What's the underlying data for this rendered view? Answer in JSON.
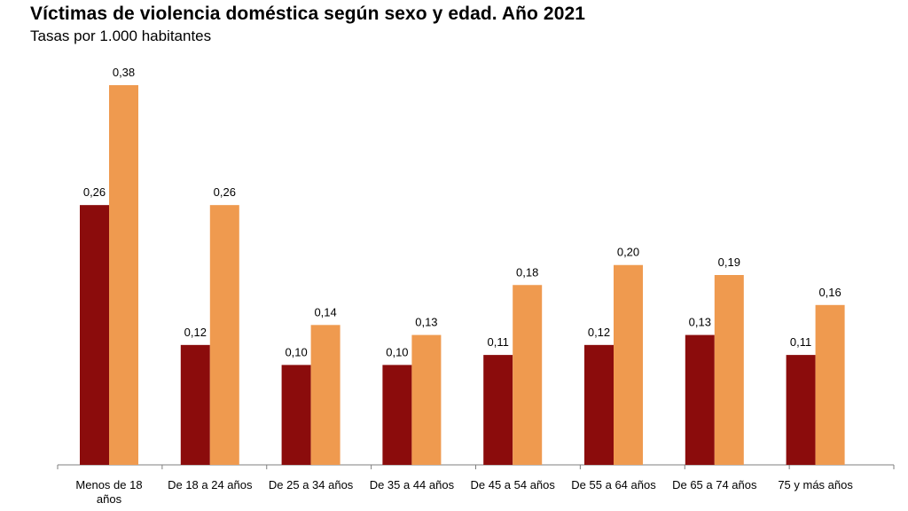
{
  "chart_data": {
    "type": "bar",
    "title": "Víctimas de violencia doméstica según sexo y edad. Año 2021",
    "subtitle": "Tasas por 1.000 habitantes",
    "xlabel": "",
    "ylabel": "",
    "ylim": [
      0,
      0.38
    ],
    "grid": false,
    "legend": "none",
    "categories": [
      [
        "Menos de 18",
        "años"
      ],
      [
        "De 18 a 24 años"
      ],
      [
        "De 25 a 34 años"
      ],
      [
        "De 35 a 44 años"
      ],
      [
        "De 45 a 54 años"
      ],
      [
        "De 55 a 64 años"
      ],
      [
        "De 65 a 74 años"
      ],
      [
        "75 y más años"
      ]
    ],
    "series": [
      {
        "color": "#8b0c0c",
        "values": [
          0.26,
          0.12,
          0.1,
          0.1,
          0.11,
          0.12,
          0.13,
          0.11
        ],
        "labels": [
          "0,26",
          "0,12",
          "0,10",
          "0,10",
          "0,11",
          "0,12",
          "0,13",
          "0,11"
        ]
      },
      {
        "color": "#ef9a4f",
        "values": [
          0.38,
          0.26,
          0.14,
          0.13,
          0.18,
          0.2,
          0.19,
          0.16
        ],
        "labels": [
          "0,38",
          "0,26",
          "0,14",
          "0,13",
          "0,18",
          "0,20",
          "0,19",
          "0,16"
        ]
      }
    ]
  }
}
